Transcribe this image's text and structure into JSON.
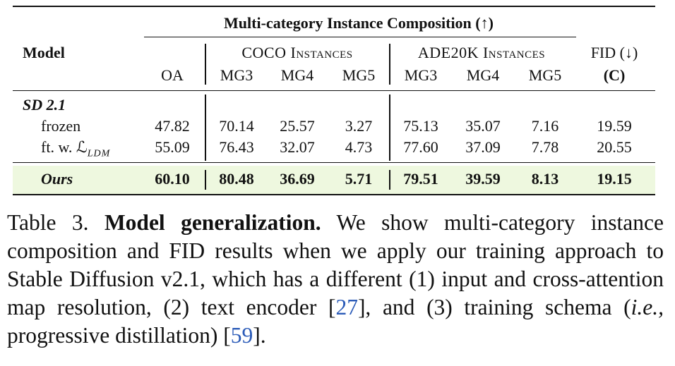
{
  "table": {
    "group_header": "Multi-category Instance Composition (↑)",
    "model_header": "Model",
    "coco_header": "COCO Instances",
    "ade_header": "ADE20K Instances",
    "fid_header": "FID (↓)",
    "fid_sub": "(C)",
    "columns": [
      "OA",
      "MG3",
      "MG4",
      "MG5",
      "MG3",
      "MG4",
      "MG5"
    ],
    "section_label": "SD 2.1",
    "rows": [
      {
        "model": "frozen",
        "values": [
          "47.82",
          "70.14",
          "25.57",
          "3.27",
          "75.13",
          "35.07",
          "7.16",
          "19.59"
        ]
      },
      {
        "model": "ft. w. ℒ",
        "model_sub": "LDM",
        "values": [
          "55.09",
          "76.43",
          "32.07",
          "4.73",
          "77.60",
          "37.09",
          "7.78",
          "20.55"
        ]
      },
      {
        "model": "Ours",
        "values": [
          "60.10",
          "80.48",
          "36.69",
          "5.71",
          "79.51",
          "39.59",
          "8.13",
          "19.15"
        ],
        "highlight_color": "#eef8df"
      }
    ]
  },
  "caption": {
    "label": "Table 3.",
    "title": "Model generalization.",
    "text1": " We show multi-category instance composition and FID results when we apply our training approach to Stable Diffusion v2.1, which has a different (1) input and cross-attention map resolution, (2) text encoder [",
    "ref1": "27",
    "text2": "], and (3) training schema (",
    "ie": "i.e.,",
    "text3": " progressive distillation) [",
    "ref2": "59",
    "text4": "]."
  }
}
